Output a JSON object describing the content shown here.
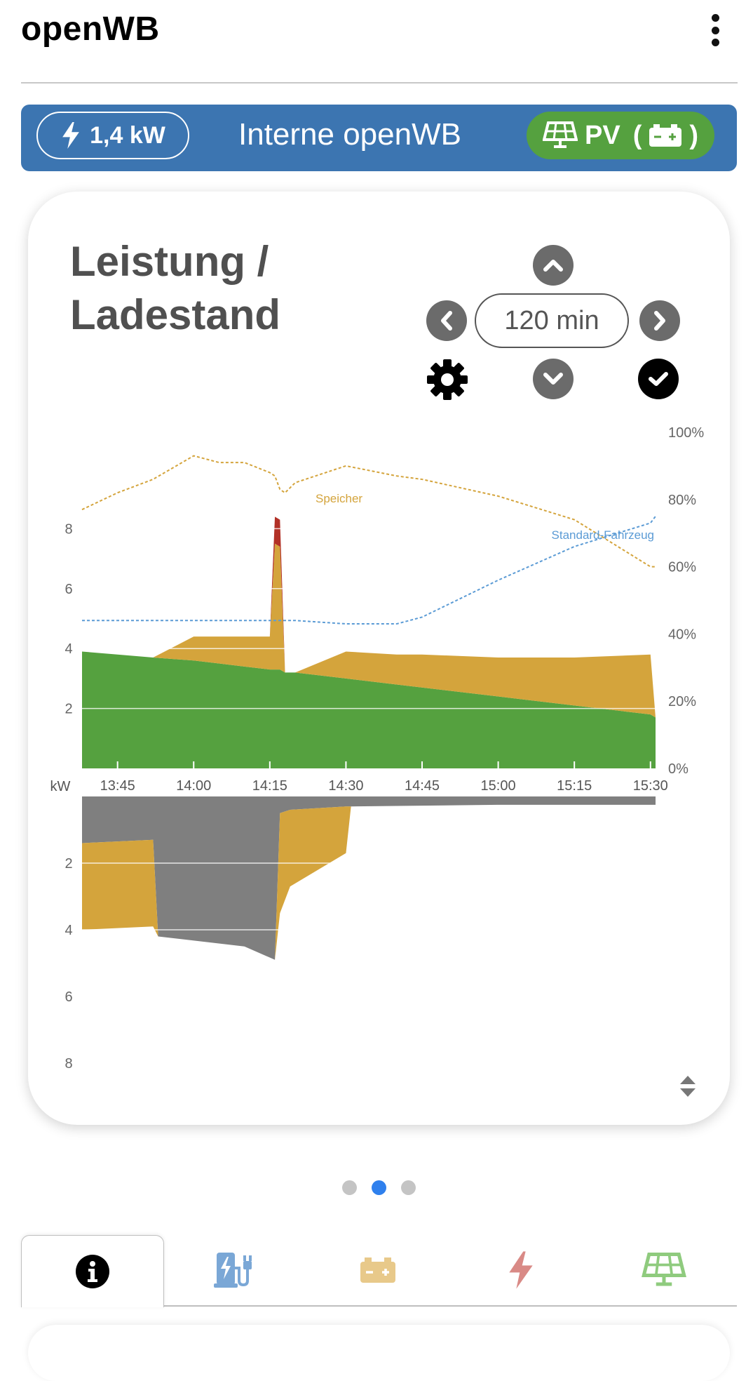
{
  "app": {
    "title": "openWB"
  },
  "wallbox": {
    "power": "1,4 kW",
    "name": "Interne openWB",
    "mode": "PV",
    "mode_paren_open": "(",
    "mode_paren_close": ")"
  },
  "card": {
    "title_line1": "Leistung /",
    "title_line2": "Ladestand",
    "range": "120 min"
  },
  "chart_data": [
    {
      "type": "area",
      "title": "",
      "xlabel": "",
      "ylabel": "kW",
      "x": [
        "13:38",
        "13:45",
        "13:52",
        "14:00",
        "14:05",
        "14:10",
        "14:15",
        "14:16",
        "14:17",
        "14:18",
        "14:20",
        "14:30",
        "14:40",
        "14:45",
        "15:00",
        "15:15",
        "15:30",
        "15:31"
      ],
      "ylim": [
        0,
        10
      ],
      "y2lim": [
        0,
        100
      ],
      "yticks": [
        2,
        4,
        6,
        8
      ],
      "y2ticks": [
        "0%",
        "20%",
        "40%",
        "60%",
        "80%",
        "100%"
      ],
      "xticks": [
        "13:45",
        "14:00",
        "14:15",
        "14:30",
        "14:45",
        "15:00",
        "15:15",
        "15:30"
      ],
      "series": [
        {
          "name": "",
          "color": "#55a13f",
          "values": [
            3.9,
            3.8,
            3.7,
            3.6,
            3.5,
            3.4,
            3.3,
            3.3,
            3.3,
            3.2,
            3.2,
            3.0,
            2.8,
            2.7,
            2.4,
            2.1,
            1.8,
            1.7
          ]
        },
        {
          "name": "",
          "color": "#d4a43c",
          "values": [
            0,
            0,
            0,
            0.8,
            0.9,
            1.0,
            1.1,
            4.2,
            4.1,
            0,
            0,
            0.9,
            1.0,
            1.1,
            1.3,
            1.6,
            2.0,
            0
          ]
        },
        {
          "name": "",
          "color": "#b23127",
          "values": [
            0,
            0,
            0,
            0,
            0,
            0,
            0,
            0.9,
            0.9,
            0,
            0,
            0,
            0,
            0,
            0,
            0,
            0,
            0
          ]
        }
      ],
      "lines": [
        {
          "name": "Speicher",
          "axis": "right",
          "color": "#d4a43c",
          "values": [
            77,
            82,
            86,
            93,
            91,
            91,
            88,
            87,
            83,
            82,
            85,
            90,
            87,
            86,
            81,
            74,
            60,
            60
          ]
        },
        {
          "name": "Standard-Fahrzeug",
          "axis": "right",
          "color": "#5b9bd5",
          "values": [
            44,
            44,
            44,
            44,
            44,
            44,
            44,
            44,
            44,
            44,
            44,
            43,
            43,
            45,
            56,
            66,
            73,
            75
          ]
        }
      ]
    },
    {
      "type": "area",
      "title": "",
      "xlabel": "",
      "ylabel": "kW",
      "x": [
        "13:38",
        "13:52",
        "13:53",
        "14:10",
        "14:16",
        "14:17",
        "14:19",
        "14:30",
        "14:31",
        "15:00",
        "15:31"
      ],
      "ylim": [
        0,
        9
      ],
      "yticks": [
        2,
        4,
        6,
        8
      ],
      "inverted": true,
      "series": [
        {
          "name": "",
          "color": "#7f7f7f",
          "values": [
            1.4,
            1.3,
            4.2,
            4.5,
            4.9,
            0.5,
            0.4,
            0.3,
            0.3,
            0.25,
            0.25
          ]
        },
        {
          "name": "",
          "color": "#d4a43c",
          "values": [
            2.6,
            2.6,
            0,
            0,
            0,
            3.0,
            2.3,
            1.4,
            0,
            0,
            0
          ]
        }
      ]
    }
  ],
  "colors": {
    "header_blue": "#3c75b1",
    "pv_green": "#55a13f",
    "storage_yellow": "#d4a43c",
    "grid_red": "#b23127",
    "house_grey": "#7f7f7f",
    "vehicle_blue": "#5b9bd5"
  },
  "icons": {
    "menu": "kebab-icon",
    "power": "bolt-icon",
    "mode": "solar-panel-icon",
    "battery": "battery-icon",
    "up": "chevron-up-icon",
    "down": "chevron-down-icon",
    "left": "chevron-left-icon",
    "right": "chevron-right-icon",
    "settings": "gear-icon",
    "apply": "check-icon",
    "resize": "sort-icon"
  },
  "pager": {
    "pages": 3,
    "active": 2
  },
  "tabs": [
    {
      "id": "info",
      "icon": "info-icon",
      "active": true
    },
    {
      "id": "chargepoints",
      "icon": "charging-station-icon"
    },
    {
      "id": "battery",
      "icon": "battery-icon"
    },
    {
      "id": "grid",
      "icon": "bolt-icon"
    },
    {
      "id": "pv",
      "icon": "solar-panel-icon"
    }
  ]
}
